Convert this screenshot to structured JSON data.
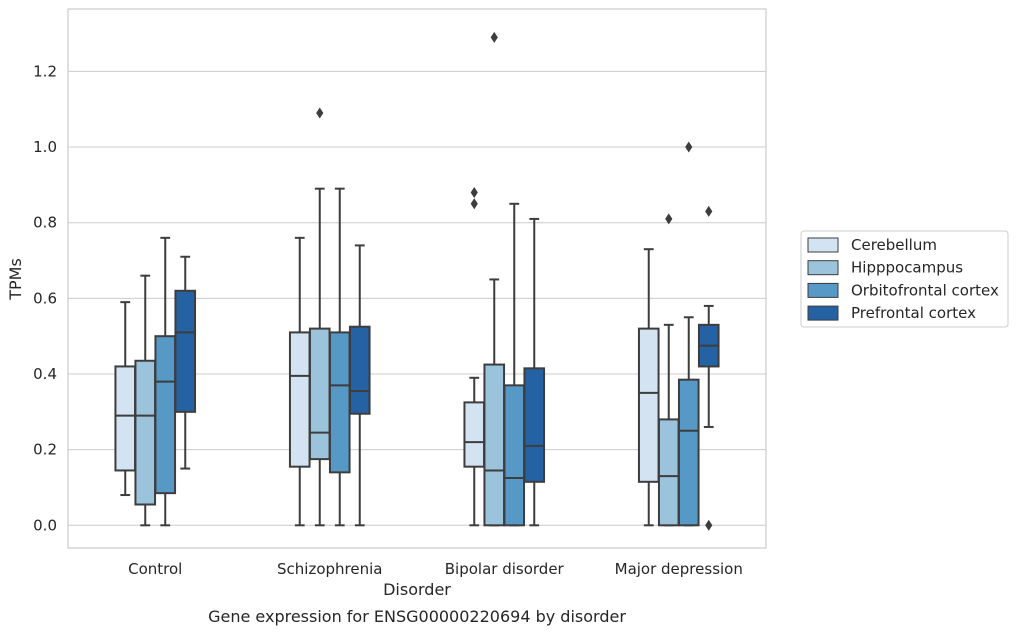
{
  "chart_data": {
    "type": "box",
    "xlabel": "Disorder",
    "ylabel": "TPMs",
    "caption": "Gene expression for ENSG00000220694 by disorder",
    "ylim": [
      -0.06,
      1.365
    ],
    "yticks": [
      "0.0",
      "0.2",
      "0.4",
      "0.6",
      "0.8",
      "1.0",
      "1.2"
    ],
    "grid": true,
    "legend_position": "right",
    "categories": [
      "Control",
      "Schizophrenia",
      "Bipolar disorder",
      "Major depression"
    ],
    "series": [
      {
        "name": "Cerebellum",
        "color": "#d3e3f2",
        "boxes": [
          {
            "whislo": 0.08,
            "q1": 0.145,
            "med": 0.29,
            "q3": 0.42,
            "whishi": 0.59,
            "fliers": []
          },
          {
            "whislo": 0.0,
            "q1": 0.155,
            "med": 0.395,
            "q3": 0.51,
            "whishi": 0.76,
            "fliers": []
          },
          {
            "whislo": 0.0,
            "q1": 0.155,
            "med": 0.22,
            "q3": 0.325,
            "whishi": 0.39,
            "fliers": [
              0.85,
              0.88
            ]
          },
          {
            "whislo": 0.0,
            "q1": 0.115,
            "med": 0.35,
            "q3": 0.52,
            "whishi": 0.73,
            "fliers": []
          }
        ]
      },
      {
        "name": "Hipppocampus",
        "color": "#9cc3dc",
        "boxes": [
          {
            "whislo": 0.0,
            "q1": 0.055,
            "med": 0.29,
            "q3": 0.435,
            "whishi": 0.66,
            "fliers": []
          },
          {
            "whislo": 0.0,
            "q1": 0.175,
            "med": 0.245,
            "q3": 0.52,
            "whishi": 0.89,
            "fliers": [
              1.09
            ]
          },
          {
            "whislo": 0.0,
            "q1": 0.0,
            "med": 0.145,
            "q3": 0.425,
            "whishi": 0.65,
            "fliers": [
              1.29
            ]
          },
          {
            "whislo": 0.0,
            "q1": 0.0,
            "med": 0.13,
            "q3": 0.28,
            "whishi": 0.53,
            "fliers": [
              0.81
            ]
          }
        ]
      },
      {
        "name": "Orbitofrontal cortex",
        "color": "#5698c6",
        "boxes": [
          {
            "whislo": 0.0,
            "q1": 0.085,
            "med": 0.38,
            "q3": 0.5,
            "whishi": 0.76,
            "fliers": []
          },
          {
            "whislo": 0.0,
            "q1": 0.14,
            "med": 0.37,
            "q3": 0.51,
            "whishi": 0.89,
            "fliers": []
          },
          {
            "whislo": 0.0,
            "q1": 0.0,
            "med": 0.125,
            "q3": 0.37,
            "whishi": 0.85,
            "fliers": []
          },
          {
            "whislo": 0.0,
            "q1": 0.0,
            "med": 0.25,
            "q3": 0.385,
            "whishi": 0.55,
            "fliers": [
              1.0
            ]
          }
        ]
      },
      {
        "name": "Prefrontal cortex",
        "color": "#2562a3",
        "boxes": [
          {
            "whislo": 0.15,
            "q1": 0.3,
            "med": 0.51,
            "q3": 0.62,
            "whishi": 0.71,
            "fliers": []
          },
          {
            "whislo": 0.0,
            "q1": 0.295,
            "med": 0.355,
            "q3": 0.525,
            "whishi": 0.74,
            "fliers": []
          },
          {
            "whislo": 0.0,
            "q1": 0.115,
            "med": 0.21,
            "q3": 0.415,
            "whishi": 0.81,
            "fliers": []
          },
          {
            "whislo": 0.26,
            "q1": 0.42,
            "med": 0.475,
            "q3": 0.53,
            "whishi": 0.58,
            "fliers": [
              0.0,
              0.83
            ]
          }
        ]
      }
    ]
  }
}
